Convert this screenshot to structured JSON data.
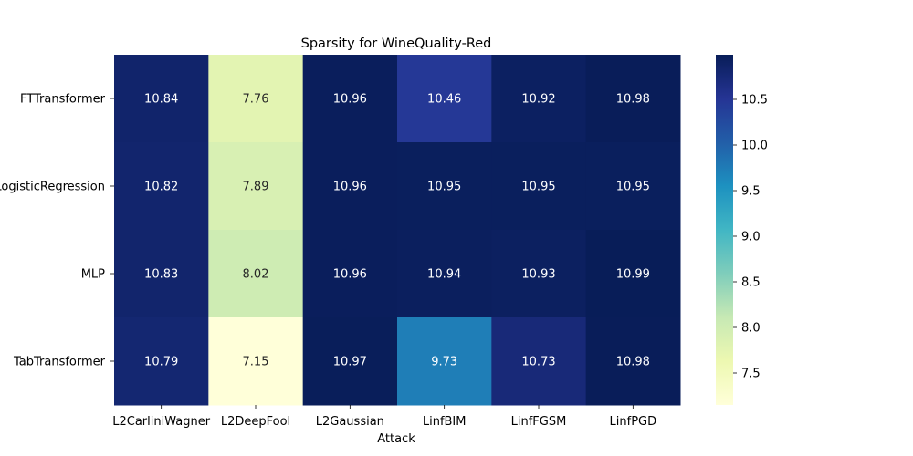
{
  "chart_data": {
    "type": "heatmap",
    "title": "Sparsity for WineQuality-Red",
    "xlabel": "Attack",
    "ylabel": "",
    "x_categories": [
      "L2CarliniWagner",
      "L2DeepFool",
      "L2Gaussian",
      "LinfBIM",
      "LinfFGSM",
      "LinfPGD"
    ],
    "y_categories": [
      "FTTransformer",
      "LogisticRegression",
      "MLP",
      "TabTransformer"
    ],
    "values": [
      [
        10.84,
        7.76,
        10.96,
        10.46,
        10.92,
        10.98
      ],
      [
        10.82,
        7.89,
        10.96,
        10.95,
        10.95,
        10.95
      ],
      [
        10.83,
        8.02,
        10.96,
        10.94,
        10.93,
        10.99
      ],
      [
        10.79,
        7.15,
        10.97,
        9.73,
        10.73,
        10.98
      ]
    ],
    "value_labels": [
      [
        "10.84",
        "7.76",
        "10.96",
        "10.46",
        "10.92",
        "10.98"
      ],
      [
        "10.82",
        "7.89",
        "10.96",
        "10.95",
        "10.95",
        "10.95"
      ],
      [
        "10.83",
        "8.02",
        "10.96",
        "10.94",
        "10.93",
        "10.99"
      ],
      [
        "10.79",
        "7.15",
        "10.97",
        "9.73",
        "10.73",
        "10.98"
      ]
    ],
    "colormap": "YlGnBu",
    "color_range": [
      7.15,
      10.99
    ],
    "colorbar_ticks": [
      7.5,
      8.0,
      8.5,
      9.0,
      9.5,
      10.0,
      10.5
    ],
    "colorbar_tick_labels": [
      "7.5",
      "8.0",
      "8.5",
      "9.0",
      "9.5",
      "10.0",
      "10.5"
    ],
    "colors": {
      "light_text": "#ffffff",
      "dark_text": "#262626"
    }
  }
}
